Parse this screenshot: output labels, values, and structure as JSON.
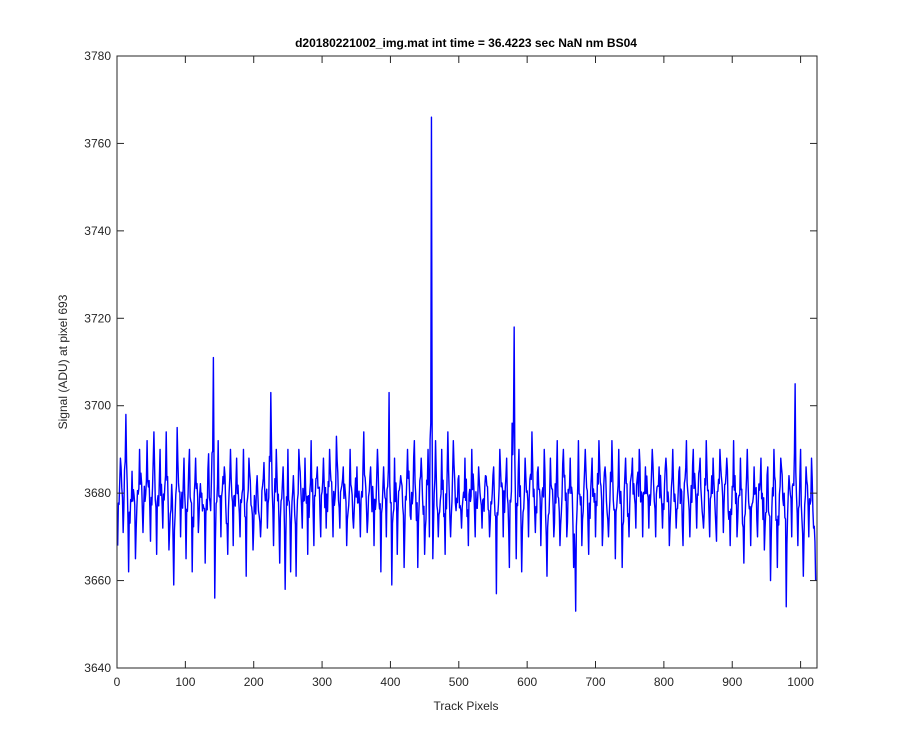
{
  "chart_data": {
    "type": "line",
    "title": "d20180221002_img.mat int time = 36.4223 sec  NaN nm BS04",
    "xlabel": "Track Pixels",
    "ylabel": "Signal (ADU) at pixel 693",
    "xlim": [
      0,
      1024
    ],
    "ylim": [
      3640,
      3780
    ],
    "xticks": [
      "0",
      "100",
      "200",
      "300",
      "400",
      "500",
      "600",
      "700",
      "800",
      "900",
      "1000"
    ],
    "yticks": [
      "3640",
      "3660",
      "3680",
      "3700",
      "3720",
      "3740",
      "3760",
      "3780"
    ],
    "grid": false,
    "legend": "none",
    "series": [
      {
        "color": "#0000ff",
        "noise_center": 3680,
        "points": [
          [
            1,
            3668
          ],
          [
            5,
            3688
          ],
          [
            9,
            3671
          ],
          [
            13,
            3698
          ],
          [
            17,
            3662
          ],
          [
            22,
            3685
          ],
          [
            27,
            3665
          ],
          [
            33,
            3690
          ],
          [
            38,
            3671
          ],
          [
            44,
            3692
          ],
          [
            49,
            3669
          ],
          [
            54,
            3694
          ],
          [
            58,
            3666
          ],
          [
            63,
            3690
          ],
          [
            67,
            3672
          ],
          [
            72,
            3694
          ],
          [
            76,
            3667
          ],
          [
            80,
            3682
          ],
          [
            83,
            3659
          ],
          [
            88,
            3695
          ],
          [
            93,
            3670
          ],
          [
            98,
            3688
          ],
          [
            101,
            3665
          ],
          [
            106,
            3690
          ],
          [
            110,
            3662
          ],
          [
            115,
            3688
          ],
          [
            119,
            3671
          ],
          [
            124,
            3680
          ],
          [
            129,
            3664
          ],
          [
            134,
            3689
          ],
          [
            137,
            3676
          ],
          [
            141,
            3711
          ],
          [
            143,
            3656
          ],
          [
            148,
            3692
          ],
          [
            152,
            3670
          ],
          [
            157,
            3686
          ],
          [
            162,
            3666
          ],
          [
            166,
            3690
          ],
          [
            170,
            3668
          ],
          [
            175,
            3688
          ],
          [
            180,
            3670
          ],
          [
            185,
            3690
          ],
          [
            189,
            3661
          ],
          [
            193,
            3688
          ],
          [
            199,
            3667
          ],
          [
            205,
            3684
          ],
          [
            210,
            3670
          ],
          [
            215,
            3687
          ],
          [
            220,
            3672
          ],
          [
            225,
            3703
          ],
          [
            229,
            3668
          ],
          [
            233,
            3690
          ],
          [
            238,
            3664
          ],
          [
            243,
            3686
          ],
          [
            246,
            3658
          ],
          [
            250,
            3690
          ],
          [
            254,
            3662
          ],
          [
            258,
            3684
          ],
          [
            262,
            3661
          ],
          [
            266,
            3690
          ],
          [
            271,
            3672
          ],
          [
            275,
            3688
          ],
          [
            279,
            3666
          ],
          [
            284,
            3692
          ],
          [
            288,
            3668
          ],
          [
            293,
            3686
          ],
          [
            298,
            3670
          ],
          [
            302,
            3688
          ],
          [
            306,
            3672
          ],
          [
            311,
            3690
          ],
          [
            316,
            3670
          ],
          [
            321,
            3693
          ],
          [
            326,
            3672
          ],
          [
            331,
            3686
          ],
          [
            336,
            3668
          ],
          [
            341,
            3690
          ],
          [
            346,
            3672
          ],
          [
            351,
            3686
          ],
          [
            356,
            3670
          ],
          [
            361,
            3694
          ],
          [
            366,
            3671
          ],
          [
            371,
            3686
          ],
          [
            376,
            3668
          ],
          [
            381,
            3690
          ],
          [
            386,
            3662
          ],
          [
            390,
            3686
          ],
          [
            394,
            3670
          ],
          [
            398,
            3703
          ],
          [
            402,
            3659
          ],
          [
            406,
            3688
          ],
          [
            410,
            3666
          ],
          [
            415,
            3684
          ],
          [
            420,
            3663
          ],
          [
            425,
            3690
          ],
          [
            430,
            3674
          ],
          [
            435,
            3692
          ],
          [
            440,
            3663
          ],
          [
            445,
            3688
          ],
          [
            450,
            3666
          ],
          [
            455,
            3690
          ],
          [
            457,
            3670
          ],
          [
            460,
            3766
          ],
          [
            462,
            3665
          ],
          [
            466,
            3692
          ],
          [
            470,
            3670
          ],
          [
            475,
            3690
          ],
          [
            480,
            3666
          ],
          [
            484,
            3694
          ],
          [
            488,
            3670
          ],
          [
            492,
            3692
          ],
          [
            496,
            3676
          ],
          [
            500,
            3684
          ],
          [
            504,
            3672
          ],
          [
            509,
            3688
          ],
          [
            514,
            3668
          ],
          [
            519,
            3690
          ],
          [
            524,
            3670
          ],
          [
            529,
            3686
          ],
          [
            534,
            3672
          ],
          [
            539,
            3684
          ],
          [
            545,
            3670
          ],
          [
            551,
            3686
          ],
          [
            555,
            3657
          ],
          [
            560,
            3690
          ],
          [
            565,
            3670
          ],
          [
            570,
            3688
          ],
          [
            574,
            3663
          ],
          [
            578,
            3696
          ],
          [
            581,
            3718
          ],
          [
            584,
            3665
          ],
          [
            588,
            3690
          ],
          [
            592,
            3662
          ],
          [
            597,
            3688
          ],
          [
            602,
            3670
          ],
          [
            607,
            3694
          ],
          [
            612,
            3671
          ],
          [
            616,
            3686
          ],
          [
            620,
            3668
          ],
          [
            625,
            3690
          ],
          [
            629,
            3661
          ],
          [
            634,
            3688
          ],
          [
            639,
            3670
          ],
          [
            644,
            3692
          ],
          [
            648,
            3668
          ],
          [
            653,
            3690
          ],
          [
            658,
            3670
          ],
          [
            663,
            3688
          ],
          [
            668,
            3663
          ],
          [
            671,
            3653
          ],
          [
            675,
            3692
          ],
          [
            680,
            3668
          ],
          [
            685,
            3690
          ],
          [
            690,
            3666
          ],
          [
            695,
            3688
          ],
          [
            700,
            3670
          ],
          [
            705,
            3692
          ],
          [
            710,
            3668
          ],
          [
            714,
            3686
          ],
          [
            719,
            3670
          ],
          [
            724,
            3692
          ],
          [
            729,
            3665
          ],
          [
            734,
            3690
          ],
          [
            739,
            3663
          ],
          [
            744,
            3688
          ],
          [
            749,
            3670
          ],
          [
            754,
            3688
          ],
          [
            759,
            3672
          ],
          [
            764,
            3690
          ],
          [
            769,
            3670
          ],
          [
            773,
            3686
          ],
          [
            778,
            3672
          ],
          [
            783,
            3690
          ],
          [
            788,
            3670
          ],
          [
            793,
            3686
          ],
          [
            798,
            3672
          ],
          [
            803,
            3688
          ],
          [
            808,
            3668
          ],
          [
            813,
            3690
          ],
          [
            818,
            3672
          ],
          [
            823,
            3686
          ],
          [
            828,
            3668
          ],
          [
            833,
            3692
          ],
          [
            838,
            3670
          ],
          [
            843,
            3690
          ],
          [
            848,
            3672
          ],
          [
            853,
            3688
          ],
          [
            858,
            3672
          ],
          [
            862,
            3692
          ],
          [
            867,
            3670
          ],
          [
            872,
            3688
          ],
          [
            877,
            3669
          ],
          [
            882,
            3690
          ],
          [
            887,
            3671
          ],
          [
            892,
            3688
          ],
          [
            897,
            3668
          ],
          [
            902,
            3692
          ],
          [
            907,
            3670
          ],
          [
            912,
            3688
          ],
          [
            917,
            3664
          ],
          [
            922,
            3690
          ],
          [
            927,
            3668
          ],
          [
            932,
            3686
          ],
          [
            937,
            3670
          ],
          [
            942,
            3688
          ],
          [
            947,
            3667
          ],
          [
            952,
            3686
          ],
          [
            956,
            3660
          ],
          [
            961,
            3690
          ],
          [
            966,
            3663
          ],
          [
            971,
            3688
          ],
          [
            976,
            3680
          ],
          [
            979,
            3654
          ],
          [
            983,
            3684
          ],
          [
            987,
            3670
          ],
          [
            992,
            3705
          ],
          [
            996,
            3668
          ],
          [
            1000,
            3690
          ],
          [
            1004,
            3661
          ],
          [
            1008,
            3686
          ],
          [
            1012,
            3670
          ],
          [
            1016,
            3688
          ],
          [
            1019,
            3672
          ],
          [
            1022,
            3660
          ]
        ]
      }
    ]
  }
}
